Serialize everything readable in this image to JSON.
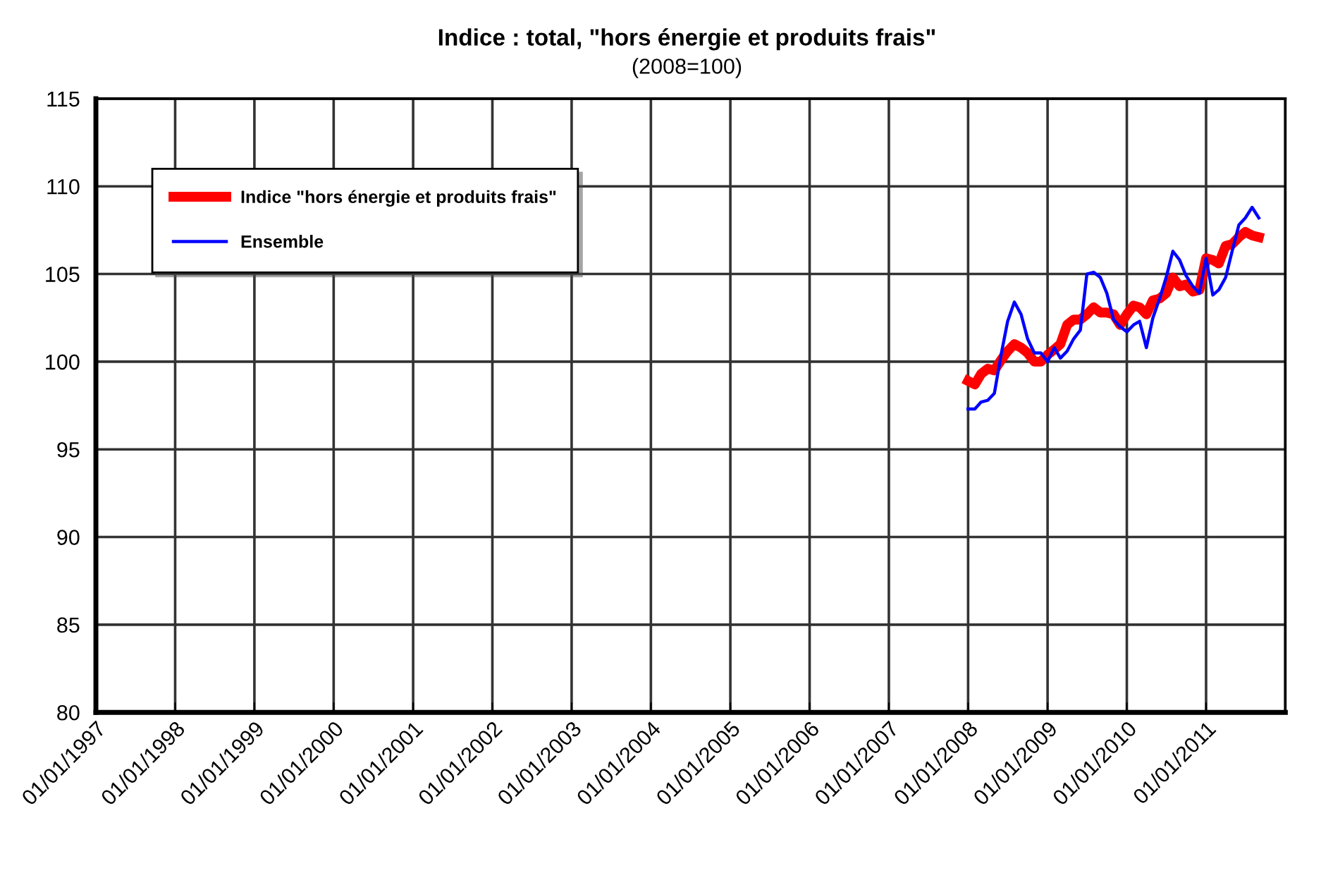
{
  "chart_data": {
    "type": "line",
    "title": "Indice : total, \"hors énergie et produits frais\"",
    "subtitle": "(2008=100)",
    "x": [
      "2008-01",
      "2008-02",
      "2008-03",
      "2008-04",
      "2008-05",
      "2008-06",
      "2008-07",
      "2008-08",
      "2008-09",
      "2008-10",
      "2008-11",
      "2008-12",
      "2009-01",
      "2009-02",
      "2009-03",
      "2009-04",
      "2009-05",
      "2009-06",
      "2009-07",
      "2009-08",
      "2009-09",
      "2009-10",
      "2009-11",
      "2009-12",
      "2010-01",
      "2010-02",
      "2010-03",
      "2010-04",
      "2010-05",
      "2010-06",
      "2010-07",
      "2010-08",
      "2010-09",
      "2010-10",
      "2010-11",
      "2010-12",
      "2011-01",
      "2011-02",
      "2011-03",
      "2011-04",
      "2011-05",
      "2011-06",
      "2011-07",
      "2011-08",
      "2011-09"
    ],
    "series": [
      {
        "name": "Indice \"hors énergie et produits frais\"",
        "color": "#ff0000",
        "values": [
          98.9,
          98.7,
          99.3,
          99.6,
          99.5,
          100.1,
          100.6,
          101.0,
          100.8,
          100.5,
          100.0,
          100.0,
          100.4,
          100.7,
          101.0,
          102.1,
          102.4,
          102.4,
          102.7,
          103.1,
          102.8,
          102.8,
          102.7,
          102.1,
          102.7,
          103.2,
          103.1,
          102.7,
          103.5,
          103.6,
          103.9,
          104.8,
          104.3,
          104.4,
          104.0,
          104.1,
          105.9,
          105.8,
          105.6,
          106.6,
          106.7,
          107.1,
          107.4,
          107.2,
          107.1
        ]
      },
      {
        "name": "Ensemble",
        "color": "#0000ff",
        "values": [
          97.3,
          97.3,
          97.7,
          97.8,
          98.2,
          100.4,
          102.3,
          103.4,
          102.7,
          101.3,
          100.5,
          100.5,
          100.0,
          100.8,
          100.2,
          100.6,
          101.3,
          101.8,
          105.0,
          105.1,
          104.8,
          103.9,
          102.4,
          102.0,
          101.7,
          102.1,
          102.3,
          100.8,
          102.5,
          103.6,
          104.8,
          106.3,
          105.8,
          104.9,
          104.3,
          103.9,
          105.9,
          103.8,
          104.1,
          104.8,
          106.3,
          107.8,
          108.2,
          108.8,
          108.2
        ]
      }
    ],
    "xlim": [
      "1997-01-01",
      "2012-01-01"
    ],
    "xticks": [
      {
        "value": "1997-01-01",
        "label": "01/01/1997"
      },
      {
        "value": "1998-01-01",
        "label": "01/01/1998"
      },
      {
        "value": "1999-01-01",
        "label": "01/01/1999"
      },
      {
        "value": "2000-01-01",
        "label": "01/01/2000"
      },
      {
        "value": "2001-01-01",
        "label": "01/01/2001"
      },
      {
        "value": "2002-01-01",
        "label": "01/01/2002"
      },
      {
        "value": "2003-01-01",
        "label": "01/01/2003"
      },
      {
        "value": "2004-01-01",
        "label": "01/01/2004"
      },
      {
        "value": "2005-01-01",
        "label": "01/01/2005"
      },
      {
        "value": "2006-01-01",
        "label": "01/01/2006"
      },
      {
        "value": "2007-01-01",
        "label": "01/01/2007"
      },
      {
        "value": "2008-01-01",
        "label": "01/01/2008"
      },
      {
        "value": "2009-01-01",
        "label": "01/01/2009"
      },
      {
        "value": "2010-01-01",
        "label": "01/01/2010"
      },
      {
        "value": "2011-01-01",
        "label": "01/01/2011"
      },
      {
        "value": "2012-01-01",
        "label": null
      }
    ],
    "ylim": [
      80,
      115
    ],
    "yticks": [
      80,
      85,
      90,
      95,
      100,
      105,
      110,
      115
    ],
    "grid": true,
    "legend": "top left",
    "marker": "none",
    "line_style": "solid"
  }
}
